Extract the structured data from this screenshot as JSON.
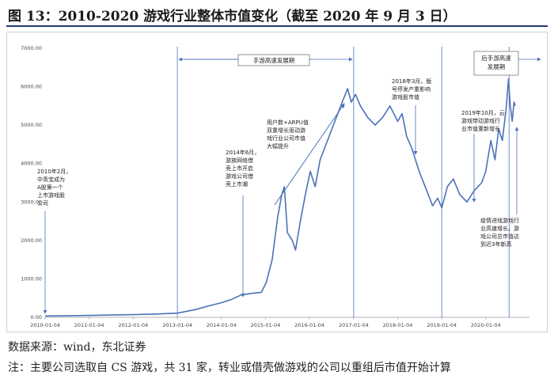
{
  "header": {
    "title": "图 13：2010-2020 游戏行业整体市值变化（截至 2020 年 9 月 3 日）"
  },
  "footer": {
    "source": "数据来源：wind，东北证券",
    "note": "注：主要公司选取自 CS 游戏，共 31 家，转业或借壳做游戏的公司以重组后市值开始计算"
  },
  "chart_data": {
    "type": "line",
    "title": "",
    "xlabel": "",
    "ylabel": "",
    "ylim": [
      0,
      7000
    ],
    "x_ticks": [
      "2010-01-04",
      "2011-01-04",
      "2012-01-04",
      "2013-01-04",
      "2014-01-04",
      "2015-01-04",
      "2016-01-04",
      "2017-01-04",
      "2018-01-04",
      "2019-01-04",
      "2020-01-04"
    ],
    "y_ticks": [
      "0.00",
      "1000.00",
      "2000.00",
      "3000.00",
      "4000.00",
      "5000.00",
      "6000.00",
      "7000.00"
    ],
    "series": [
      {
        "color": "#4a72b8",
        "points": [
          [
            "2010-01-04",
            35
          ],
          [
            "2010-07-01",
            40
          ],
          [
            "2011-01-04",
            50
          ],
          [
            "2011-07-01",
            60
          ],
          [
            "2012-01-04",
            70
          ],
          [
            "2012-07-01",
            85
          ],
          [
            "2013-01-04",
            110
          ],
          [
            "2013-06-01",
            200
          ],
          [
            "2013-09-01",
            280
          ],
          [
            "2014-01-04",
            380
          ],
          [
            "2014-04-01",
            470
          ],
          [
            "2014-06-15",
            580
          ],
          [
            "2014-09-01",
            620
          ],
          [
            "2014-12-01",
            650
          ],
          [
            "2015-01-10",
            900
          ],
          [
            "2015-03-01",
            1500
          ],
          [
            "2015-04-15",
            2600
          ],
          [
            "2015-05-20",
            3200
          ],
          [
            "2015-06-10",
            3400
          ],
          [
            "2015-07-05",
            2200
          ],
          [
            "2015-08-15",
            2000
          ],
          [
            "2015-09-10",
            1750
          ],
          [
            "2015-10-20",
            2500
          ],
          [
            "2015-12-01",
            3200
          ],
          [
            "2016-01-10",
            3800
          ],
          [
            "2016-02-20",
            3400
          ],
          [
            "2016-04-01",
            4100
          ],
          [
            "2016-06-01",
            4600
          ],
          [
            "2016-08-01",
            5100
          ],
          [
            "2016-10-01",
            5600
          ],
          [
            "2016-11-15",
            5950
          ],
          [
            "2016-12-15",
            5600
          ],
          [
            "2017-01-20",
            5800
          ],
          [
            "2017-03-01",
            5500
          ],
          [
            "2017-05-01",
            5200
          ],
          [
            "2017-07-01",
            5000
          ],
          [
            "2017-09-01",
            5200
          ],
          [
            "2017-11-01",
            5500
          ],
          [
            "2018-01-04",
            5100
          ],
          [
            "2018-02-10",
            5300
          ],
          [
            "2018-03-20",
            4700
          ],
          [
            "2018-05-01",
            4400
          ],
          [
            "2018-07-01",
            3800
          ],
          [
            "2018-09-01",
            3300
          ],
          [
            "2018-10-20",
            2900
          ],
          [
            "2018-12-01",
            3100
          ],
          [
            "2019-01-04",
            2850
          ],
          [
            "2019-02-20",
            3400
          ],
          [
            "2019-04-10",
            3600
          ],
          [
            "2019-06-01",
            3200
          ],
          [
            "2019-08-01",
            3000
          ],
          [
            "2019-10-01",
            3300
          ],
          [
            "2019-12-01",
            3500
          ],
          [
            "2020-01-04",
            3800
          ],
          [
            "2020-02-15",
            4600
          ],
          [
            "2020-03-20",
            4100
          ],
          [
            "2020-04-20",
            4900
          ],
          [
            "2020-05-20",
            4600
          ],
          [
            "2020-06-20",
            5400
          ],
          [
            "2020-07-10",
            6200
          ],
          [
            "2020-07-25",
            5500
          ],
          [
            "2020-08-10",
            5100
          ],
          [
            "2020-08-25",
            5600
          ],
          [
            "2020-09-03",
            5500
          ]
        ]
      }
    ],
    "annotations": [
      {
        "id": "a2010",
        "lines": [
          "2010年2月，",
          "中青宝成为",
          "A股第一个",
          "上市游戏股",
          "公司"
        ]
      },
      {
        "id": "a2014",
        "lines": [
          "2014年6月，",
          "游族网络借",
          "壳上市开启",
          "游戏公司借",
          "壳上市潮"
        ]
      },
      {
        "id": "a2016",
        "lines": [
          "用户数+ARPU值",
          "双重增长驱动游",
          "戏行业公司市值",
          "大幅提升"
        ]
      },
      {
        "id": "a2018",
        "lines": [
          "2018年3月，版",
          "号停发产重影响",
          "游戏股市值"
        ]
      },
      {
        "id": "a2019",
        "lines": [
          "2019年10月，云",
          "游戏带动游戏行",
          "业市值重新增长"
        ]
      },
      {
        "id": "a2020",
        "lines": [
          "疫情进戏游戏行",
          "业高速增长，游",
          "戏公司总市值达",
          "到近3年新高"
        ]
      }
    ],
    "phase_boxes": [
      {
        "id": "phase1",
        "label": "手游高速发展期"
      },
      {
        "id": "phase2",
        "lines": [
          "后手游高速",
          "发展期"
        ]
      }
    ]
  }
}
